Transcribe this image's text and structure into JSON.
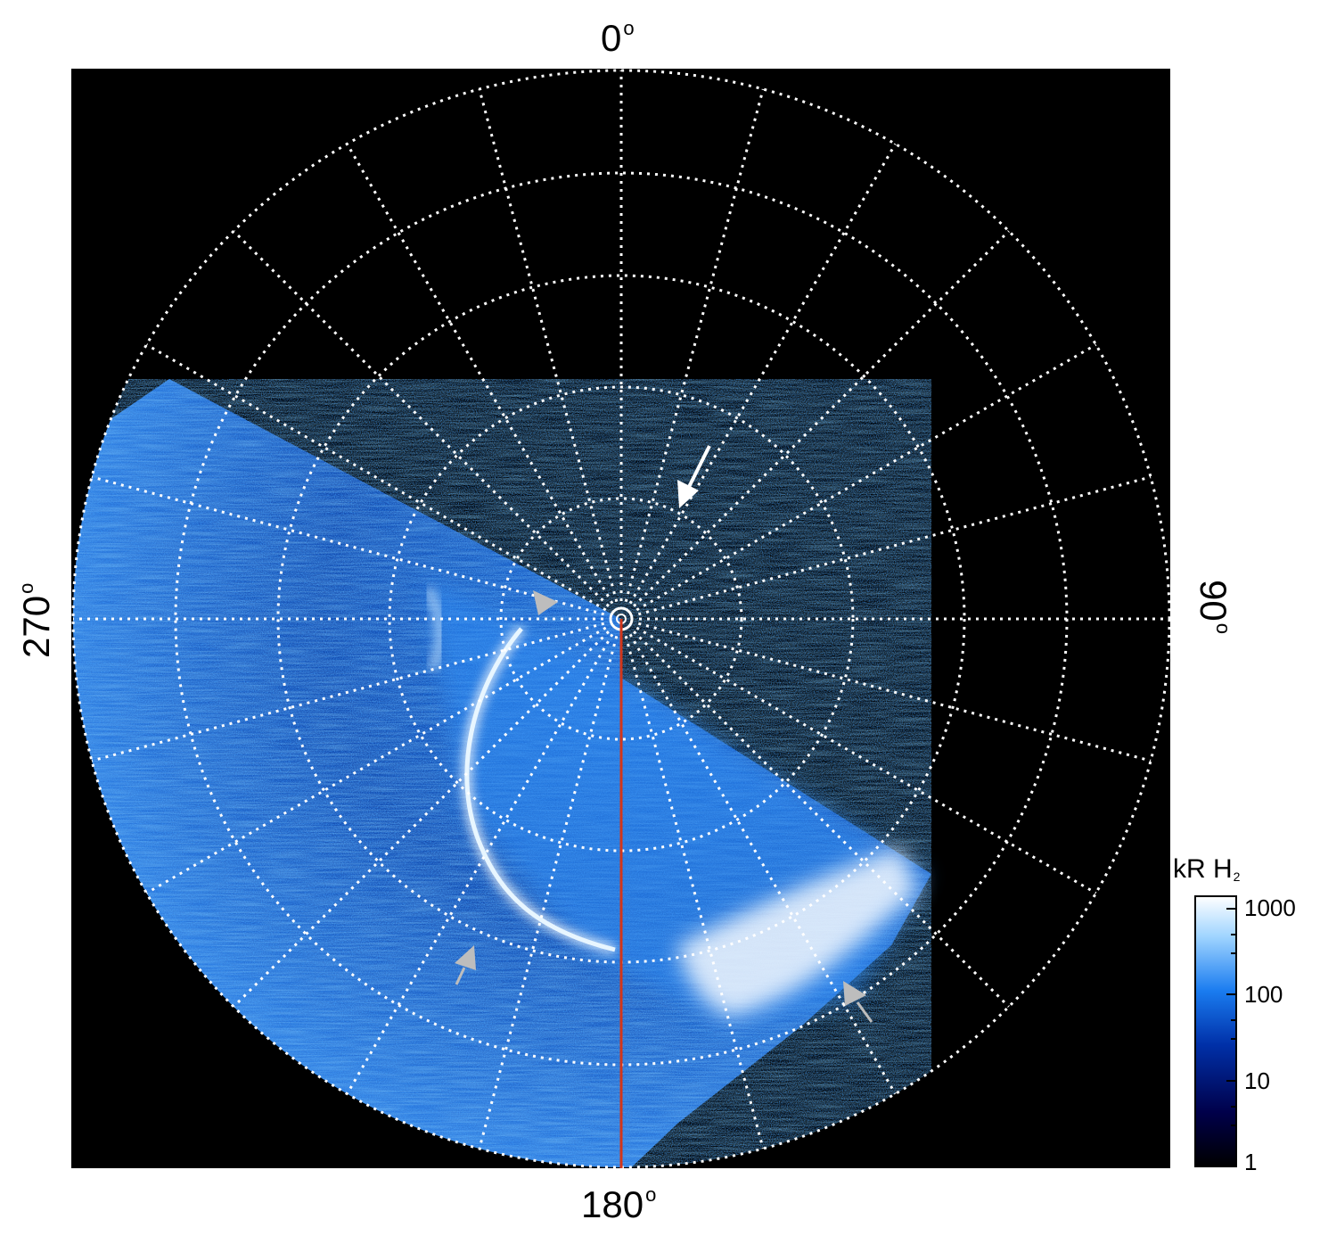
{
  "labels": {
    "top": "0",
    "right": "90",
    "bottom": "180",
    "left": "270",
    "degree_symbol": "o"
  },
  "colorbar": {
    "title": "kR H",
    "title_subscript": "2",
    "scale": "log",
    "ticks": [
      "1000",
      "100",
      "10",
      "1"
    ],
    "tick_values": [
      1000,
      100,
      10,
      1
    ],
    "colors": [
      "#000000",
      "#00004a",
      "#0030a8",
      "#1a7cf0",
      "#9fd4ff",
      "#ffffff"
    ]
  },
  "colors": {
    "background": "#000000",
    "grid": "#ffffff",
    "meridian_line": "#d2361a",
    "arrow_white": "#ffffff",
    "arrow_gray": "#bdbdbd"
  },
  "arrows": [
    {
      "name": "arrow-white",
      "color": "white"
    },
    {
      "name": "arrow-gray-center",
      "color": "gray"
    },
    {
      "name": "arrow-gray-lower-left",
      "color": "gray"
    },
    {
      "name": "arrow-gray-lower-right",
      "color": "gray"
    }
  ]
}
